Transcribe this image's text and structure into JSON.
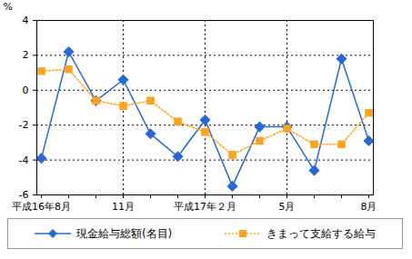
{
  "chart_data": {
    "type": "line",
    "categories": [
      "平成16年8月",
      null,
      null,
      "11月",
      null,
      null,
      "平成17年２月",
      null,
      null,
      "5月",
      null,
      null,
      "8月"
    ],
    "y_label": "%",
    "ylim": [
      -6,
      4
    ],
    "yticks": [
      -6,
      -4,
      -2,
      0,
      2,
      4
    ],
    "grid": true,
    "legend": "bottom",
    "series": [
      {
        "name": "現金給与総額(名目)",
        "color": "#2469d8",
        "marker": "diamond",
        "line_style": "solid",
        "values": [
          -3.9,
          2.2,
          -0.6,
          0.6,
          -2.5,
          -3.8,
          -1.7,
          -5.5,
          -2.1,
          -2.1,
          -4.6,
          1.8,
          -2.9
        ]
      },
      {
        "name": "きまって支給する給与",
        "color": "#ffa31a",
        "marker": "square",
        "line_style": "dashed",
        "values": [
          1.1,
          1.2,
          -0.6,
          -0.9,
          -0.6,
          -1.8,
          -2.4,
          -3.7,
          -2.9,
          -2.2,
          -3.1,
          -3.1,
          -1.3
        ]
      }
    ]
  }
}
